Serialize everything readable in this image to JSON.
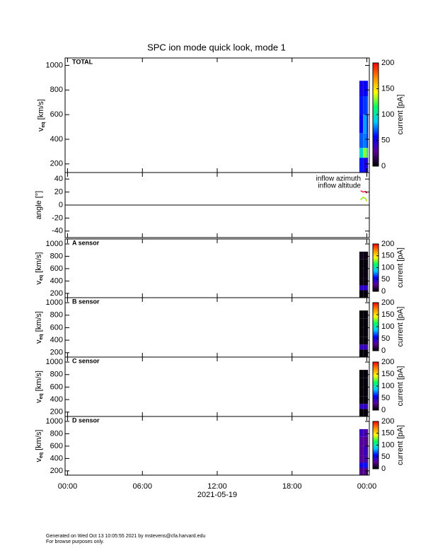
{
  "chart_data": [
    {
      "type": "heatmap",
      "title": "SPC ion mode quick look, mode 1",
      "panel_label": "TOTAL",
      "y_label": {
        "symbol": "v",
        "subscript": "eq",
        "unit": "[km/s]"
      },
      "ylim": [
        130,
        1060
      ],
      "yticks": [
        200,
        400,
        600,
        800,
        1000
      ],
      "x_bins": [
        23.4,
        23.7,
        24.0,
        24.1
      ],
      "y_bins": [
        130,
        250,
        330,
        450,
        600,
        750,
        875
      ],
      "values": [
        [
          60,
          95,
          70,
          55,
          60,
          50
        ],
        [
          50,
          130,
          75,
          80,
          65,
          55
        ],
        [
          45,
          90,
          60,
          50,
          70,
          60
        ]
      ],
      "colorbar": {
        "label": "current [pA]",
        "lim": [
          0,
          200
        ],
        "ticks": [
          0,
          50,
          100,
          150,
          200
        ]
      },
      "colormap": [
        "#000000",
        "#5a0096",
        "#0000ff",
        "#00c8ff",
        "#00ff60",
        "#ffff00",
        "#ff8c00",
        "#ff0000"
      ]
    },
    {
      "type": "line",
      "y_label": "angle [°]",
      "ylim": [
        -50,
        50
      ],
      "yticks": [
        -40,
        -20,
        0,
        20,
        40
      ],
      "zero_line": true,
      "x": [
        23.5,
        23.7,
        23.9,
        24.0
      ],
      "series": [
        {
          "name": "inflow azimuth",
          "color": "#ff1a40",
          "values": [
            22,
            20,
            21,
            18
          ]
        },
        {
          "name": "inflow altitude",
          "color": "#99e600",
          "values": [
            8,
            12,
            10,
            6
          ]
        }
      ]
    },
    {
      "type": "heatmap",
      "panel_label": "A sensor",
      "y_label": {
        "symbol": "v",
        "subscript": "eq",
        "unit": "[km/s]"
      },
      "ylim": [
        130,
        1080
      ],
      "yticks": [
        200,
        400,
        600,
        800,
        1000
      ],
      "x_bins": [
        23.4,
        23.7,
        24.0,
        24.1
      ],
      "y_bins": [
        130,
        250,
        330,
        450,
        600,
        750,
        875
      ],
      "values": [
        [
          2,
          40,
          3,
          2,
          2,
          6
        ],
        [
          3,
          45,
          4,
          3,
          2,
          4
        ],
        [
          2,
          35,
          2,
          2,
          2,
          3
        ]
      ],
      "colorbar": {
        "label": "current [pA]",
        "lim": [
          0,
          200
        ],
        "ticks": [
          0,
          50,
          100,
          150,
          200
        ]
      },
      "colormap": [
        "#000000",
        "#5a0096",
        "#0000ff",
        "#00c8ff",
        "#00ff60",
        "#ffff00",
        "#ff8c00",
        "#ff0000"
      ]
    },
    {
      "type": "heatmap",
      "panel_label": "B sensor",
      "y_label": {
        "symbol": "v",
        "subscript": "eq",
        "unit": "[km/s]"
      },
      "ylim": [
        130,
        1080
      ],
      "yticks": [
        200,
        400,
        600,
        800,
        1000
      ],
      "x_bins": [
        23.4,
        23.7,
        24.0,
        24.1
      ],
      "y_bins": [
        130,
        250,
        330,
        450,
        600,
        750,
        875
      ],
      "values": [
        [
          2,
          38,
          3,
          2,
          2,
          2
        ],
        [
          3,
          42,
          3,
          2,
          2,
          2
        ],
        [
          2,
          30,
          2,
          2,
          2,
          2
        ]
      ],
      "colorbar": {
        "label": "current [pA]",
        "lim": [
          0,
          200
        ],
        "ticks": [
          0,
          50,
          100,
          150,
          200
        ]
      },
      "colormap": [
        "#000000",
        "#5a0096",
        "#0000ff",
        "#00c8ff",
        "#00ff60",
        "#ffff00",
        "#ff8c00",
        "#ff0000"
      ]
    },
    {
      "type": "heatmap",
      "panel_label": "C sensor",
      "y_label": {
        "symbol": "v",
        "subscript": "eq",
        "unit": "[km/s]"
      },
      "ylim": [
        130,
        1080
      ],
      "yticks": [
        200,
        400,
        600,
        800,
        1000
      ],
      "x_bins": [
        23.4,
        23.7,
        24.0,
        24.1
      ],
      "y_bins": [
        130,
        250,
        330,
        450,
        600,
        750,
        875
      ],
      "values": [
        [
          2,
          40,
          2,
          2,
          2,
          2
        ],
        [
          3,
          44,
          3,
          2,
          2,
          2
        ],
        [
          2,
          32,
          2,
          2,
          2,
          2
        ]
      ],
      "colorbar": {
        "label": "current [pA]",
        "lim": [
          0,
          200
        ],
        "ticks": [
          0,
          50,
          100,
          150,
          200
        ]
      },
      "colormap": [
        "#000000",
        "#5a0096",
        "#0000ff",
        "#00c8ff",
        "#00ff60",
        "#ffff00",
        "#ff8c00",
        "#ff0000"
      ]
    },
    {
      "type": "heatmap",
      "panel_label": "D sensor",
      "y_label": {
        "symbol": "v",
        "subscript": "eq",
        "unit": "[km/s]"
      },
      "ylim": [
        130,
        1080
      ],
      "yticks": [
        200,
        400,
        600,
        800,
        1000
      ],
      "x_bins": [
        23.4,
        23.7,
        24.0,
        24.1
      ],
      "y_bins": [
        130,
        250,
        330,
        450,
        600,
        750,
        875
      ],
      "values": [
        [
          25,
          50,
          30,
          28,
          30,
          40
        ],
        [
          30,
          60,
          35,
          40,
          30,
          35
        ],
        [
          20,
          45,
          25,
          25,
          20,
          30
        ]
      ],
      "colorbar": {
        "label": "current [pA]",
        "lim": [
          0,
          200
        ],
        "ticks": [
          0,
          50,
          100,
          150,
          200
        ]
      },
      "colormap": [
        "#000000",
        "#5a0096",
        "#0000ff",
        "#00c8ff",
        "#00ff60",
        "#ffff00",
        "#ff8c00",
        "#ff0000"
      ],
      "xlim": [
        -0.2,
        24.2
      ],
      "xticks": [
        {
          "value": 0,
          "label": "00:00"
        },
        {
          "value": 6,
          "label": "06:00"
        },
        {
          "value": 12,
          "label": "12:00"
        },
        {
          "value": 18,
          "label": "18:00"
        },
        {
          "value": 24,
          "label": "00:00"
        }
      ],
      "x_label": "2021-05-19"
    }
  ],
  "footer": {
    "lines": [
      "Generated on Wed Oct 13 10:05:55 2021 by mstevens@cfa.harvard.edu",
      "For browse purposes only."
    ]
  }
}
